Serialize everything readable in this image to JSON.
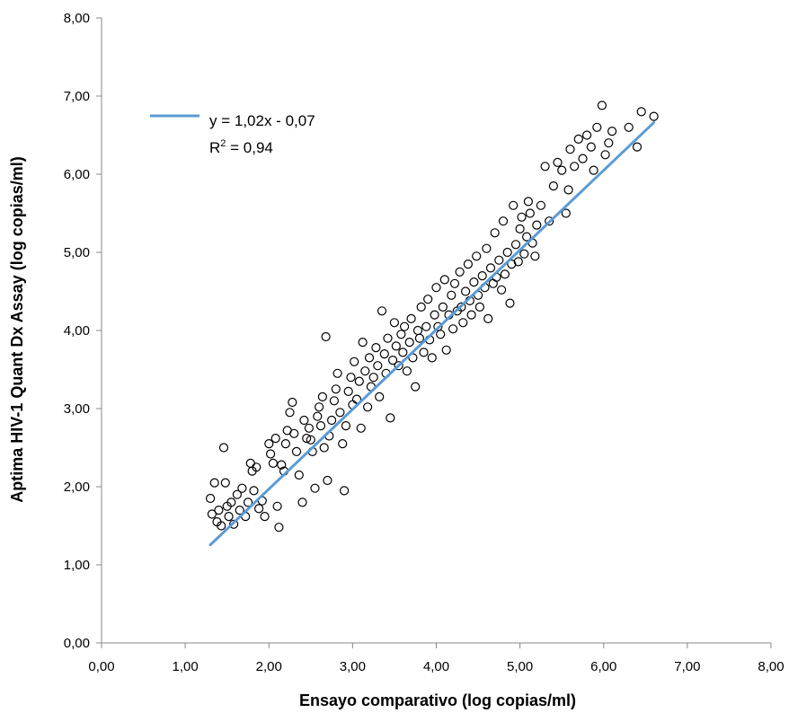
{
  "chart_data": {
    "type": "scatter",
    "title": "",
    "xlabel": "Ensayo comparativo (log copias/ml)",
    "ylabel": "Aptima HIV-1 Quant Dx Assay (log copias/ml)",
    "xlim": [
      0,
      8
    ],
    "ylim": [
      0,
      8
    ],
    "x_ticks": [
      "0,00",
      "1,00",
      "2,00",
      "3,00",
      "4,00",
      "5,00",
      "6,00",
      "7,00",
      "8,00"
    ],
    "y_ticks": [
      "0,00",
      "1,00",
      "2,00",
      "3,00",
      "4,00",
      "5,00",
      "6,00",
      "7,00",
      "8,00"
    ],
    "grid": false,
    "legend_position": "top-left",
    "marker": "open-circle",
    "marker_color": "#000000",
    "trendline": {
      "slope": 1.02,
      "intercept": -0.07,
      "x_range": [
        1.3,
        6.6
      ],
      "color": "#5b9bd5",
      "equation_label": "y = 1,02x - 0,07",
      "r2_label_prefix": "R",
      "r2_label_sup": "2",
      "r2_label_suffix": " = 0,94"
    },
    "series": [
      {
        "points": [
          [
            1.3,
            1.85
          ],
          [
            1.32,
            1.65
          ],
          [
            1.35,
            2.05
          ],
          [
            1.38,
            1.55
          ],
          [
            1.4,
            1.7
          ],
          [
            1.43,
            1.5
          ],
          [
            1.46,
            2.5
          ],
          [
            1.48,
            2.05
          ],
          [
            1.5,
            1.75
          ],
          [
            1.52,
            1.62
          ],
          [
            1.55,
            1.8
          ],
          [
            1.58,
            1.52
          ],
          [
            1.62,
            1.9
          ],
          [
            1.65,
            1.7
          ],
          [
            1.68,
            1.98
          ],
          [
            1.72,
            1.62
          ],
          [
            1.75,
            1.8
          ],
          [
            1.78,
            2.3
          ],
          [
            1.8,
            2.2
          ],
          [
            1.82,
            1.95
          ],
          [
            1.85,
            2.25
          ],
          [
            1.88,
            1.72
          ],
          [
            1.92,
            1.82
          ],
          [
            1.95,
            1.62
          ],
          [
            2.0,
            2.55
          ],
          [
            2.02,
            2.42
          ],
          [
            2.05,
            2.3
          ],
          [
            2.08,
            2.62
          ],
          [
            2.1,
            1.75
          ],
          [
            2.12,
            1.48
          ],
          [
            2.15,
            2.28
          ],
          [
            2.18,
            2.2
          ],
          [
            2.2,
            2.55
          ],
          [
            2.22,
            2.72
          ],
          [
            2.25,
            2.95
          ],
          [
            2.28,
            3.08
          ],
          [
            2.3,
            2.68
          ],
          [
            2.33,
            2.45
          ],
          [
            2.36,
            2.15
          ],
          [
            2.4,
            1.8
          ],
          [
            2.42,
            2.85
          ],
          [
            2.45,
            2.62
          ],
          [
            2.48,
            2.75
          ],
          [
            2.5,
            2.6
          ],
          [
            2.52,
            2.45
          ],
          [
            2.55,
            1.98
          ],
          [
            2.58,
            2.9
          ],
          [
            2.6,
            3.02
          ],
          [
            2.62,
            2.78
          ],
          [
            2.64,
            3.15
          ],
          [
            2.66,
            2.5
          ],
          [
            2.68,
            3.92
          ],
          [
            2.7,
            2.08
          ],
          [
            2.72,
            2.65
          ],
          [
            2.75,
            2.85
          ],
          [
            2.78,
            3.1
          ],
          [
            2.8,
            3.25
          ],
          [
            2.82,
            3.45
          ],
          [
            2.85,
            2.95
          ],
          [
            2.88,
            2.55
          ],
          [
            2.9,
            1.95
          ],
          [
            2.92,
            2.78
          ],
          [
            2.95,
            3.22
          ],
          [
            2.98,
            3.4
          ],
          [
            3.0,
            3.05
          ],
          [
            3.02,
            3.6
          ],
          [
            3.05,
            3.12
          ],
          [
            3.08,
            3.35
          ],
          [
            3.1,
            2.75
          ],
          [
            3.12,
            3.85
          ],
          [
            3.15,
            3.48
          ],
          [
            3.18,
            3.02
          ],
          [
            3.2,
            3.65
          ],
          [
            3.22,
            3.28
          ],
          [
            3.25,
            3.4
          ],
          [
            3.28,
            3.78
          ],
          [
            3.3,
            3.55
          ],
          [
            3.32,
            3.15
          ],
          [
            3.35,
            4.25
          ],
          [
            3.38,
            3.7
          ],
          [
            3.4,
            3.45
          ],
          [
            3.42,
            3.9
          ],
          [
            3.45,
            2.88
          ],
          [
            3.48,
            3.62
          ],
          [
            3.5,
            4.1
          ],
          [
            3.52,
            3.8
          ],
          [
            3.55,
            3.55
          ],
          [
            3.58,
            3.95
          ],
          [
            3.6,
            3.72
          ],
          [
            3.62,
            4.05
          ],
          [
            3.65,
            3.48
          ],
          [
            3.68,
            3.85
          ],
          [
            3.7,
            4.15
          ],
          [
            3.72,
            3.65
          ],
          [
            3.75,
            3.28
          ],
          [
            3.78,
            4.0
          ],
          [
            3.8,
            3.9
          ],
          [
            3.82,
            4.3
          ],
          [
            3.85,
            3.72
          ],
          [
            3.88,
            4.05
          ],
          [
            3.9,
            4.4
          ],
          [
            3.92,
            3.88
          ],
          [
            3.95,
            3.65
          ],
          [
            3.98,
            4.2
          ],
          [
            4.0,
            4.55
          ],
          [
            4.02,
            4.05
          ],
          [
            4.05,
            3.95
          ],
          [
            4.08,
            4.3
          ],
          [
            4.1,
            4.65
          ],
          [
            4.12,
            3.75
          ],
          [
            4.15,
            4.2
          ],
          [
            4.18,
            4.45
          ],
          [
            4.2,
            4.02
          ],
          [
            4.22,
            4.6
          ],
          [
            4.25,
            4.25
          ],
          [
            4.28,
            4.75
          ],
          [
            4.3,
            4.3
          ],
          [
            4.32,
            4.1
          ],
          [
            4.35,
            4.5
          ],
          [
            4.38,
            4.85
          ],
          [
            4.4,
            4.38
          ],
          [
            4.42,
            4.2
          ],
          [
            4.45,
            4.62
          ],
          [
            4.48,
            4.95
          ],
          [
            4.5,
            4.45
          ],
          [
            4.52,
            4.3
          ],
          [
            4.55,
            4.7
          ],
          [
            4.58,
            4.55
          ],
          [
            4.6,
            5.05
          ],
          [
            4.62,
            4.15
          ],
          [
            4.65,
            4.8
          ],
          [
            4.68,
            4.6
          ],
          [
            4.7,
            5.25
          ],
          [
            4.72,
            4.68
          ],
          [
            4.75,
            4.9
          ],
          [
            4.78,
            4.52
          ],
          [
            4.8,
            5.4
          ],
          [
            4.82,
            4.72
          ],
          [
            4.85,
            5.0
          ],
          [
            4.88,
            4.35
          ],
          [
            4.9,
            4.85
          ],
          [
            4.92,
            5.6
          ],
          [
            4.95,
            5.1
          ],
          [
            4.98,
            4.88
          ],
          [
            5.0,
            5.3
          ],
          [
            5.02,
            5.45
          ],
          [
            5.05,
            4.98
          ],
          [
            5.08,
            5.2
          ],
          [
            5.1,
            5.65
          ],
          [
            5.12,
            5.5
          ],
          [
            5.15,
            5.12
          ],
          [
            5.18,
            4.95
          ],
          [
            5.2,
            5.35
          ],
          [
            5.25,
            5.6
          ],
          [
            5.3,
            6.1
          ],
          [
            5.35,
            5.4
          ],
          [
            5.4,
            5.85
          ],
          [
            5.45,
            6.15
          ],
          [
            5.5,
            6.05
          ],
          [
            5.55,
            5.5
          ],
          [
            5.58,
            5.8
          ],
          [
            5.6,
            6.32
          ],
          [
            5.65,
            6.1
          ],
          [
            5.7,
            6.45
          ],
          [
            5.75,
            6.2
          ],
          [
            5.8,
            6.5
          ],
          [
            5.85,
            6.35
          ],
          [
            5.88,
            6.05
          ],
          [
            5.92,
            6.6
          ],
          [
            5.98,
            6.88
          ],
          [
            6.02,
            6.25
          ],
          [
            6.06,
            6.4
          ],
          [
            6.1,
            6.55
          ],
          [
            6.3,
            6.6
          ],
          [
            6.4,
            6.35
          ],
          [
            6.45,
            6.8
          ],
          [
            6.6,
            6.74
          ]
        ]
      }
    ]
  }
}
